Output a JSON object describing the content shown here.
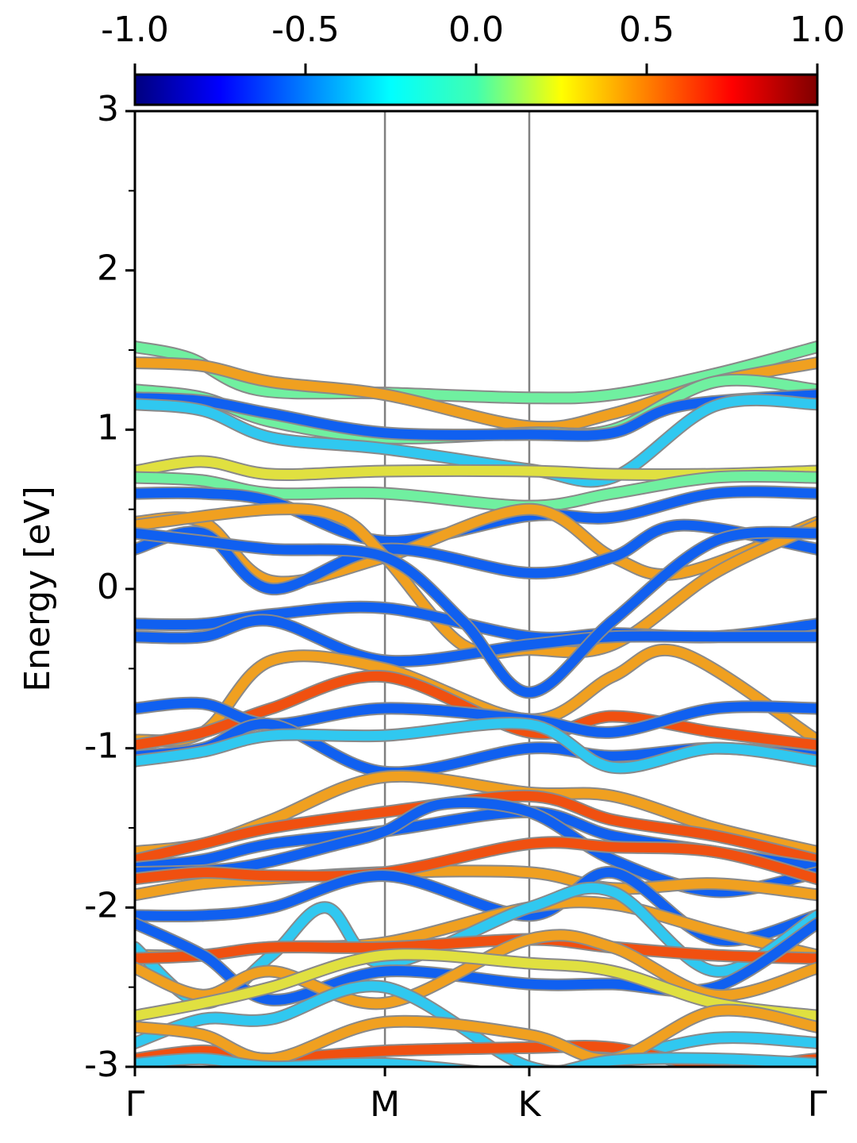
{
  "chart_data": {
    "type": "line",
    "ylabel": "Energy [eV]",
    "ylim": [
      -3,
      3
    ],
    "yticks": [
      "3",
      "2",
      "1",
      "0",
      "-1",
      "-2",
      "-3"
    ],
    "ytick_values": [
      3,
      2,
      1,
      0,
      -1,
      -2,
      -3
    ],
    "xticks": [
      "Γ",
      "M",
      "K",
      "Γ"
    ],
    "xtick_positions": [
      0,
      0.3664,
      0.5779,
      1
    ],
    "colorbar": {
      "colormap": "jet",
      "range": [
        -1.0,
        1.0
      ],
      "tick_labels": [
        "-1.0",
        "-0.5",
        "0.0",
        "0.5",
        "1.0"
      ],
      "tick_values": [
        -1.0,
        -0.5,
        0.0,
        0.5,
        1.0
      ]
    },
    "colors": {
      "blue": "#1060f0",
      "cyan": "#30c8f0",
      "green": "#70f0a0",
      "yellow": "#e0e040",
      "orange": "#f0a020",
      "red": "#f05010"
    },
    "series": [
      {
        "color": "green",
        "x": [
          0,
          0.08,
          0.18,
          0.3664,
          0.5779,
          0.7,
          0.85,
          1
        ],
        "y": [
          1.52,
          1.45,
          1.25,
          1.23,
          1.2,
          1.22,
          1.35,
          1.52
        ]
      },
      {
        "color": "orange",
        "x": [
          0,
          0.1,
          0.2,
          0.3664,
          0.5779,
          0.7,
          0.85,
          1
        ],
        "y": [
          1.42,
          1.4,
          1.3,
          1.22,
          1.02,
          1.1,
          1.3,
          1.42
        ]
      },
      {
        "color": "green",
        "x": [
          0,
          0.1,
          0.2,
          0.3664,
          0.5779,
          0.7,
          0.85,
          1
        ],
        "y": [
          1.25,
          1.2,
          1.05,
          0.95,
          0.98,
          1.0,
          1.3,
          1.25
        ]
      },
      {
        "color": "blue",
        "x": [
          0,
          0.1,
          0.2,
          0.3664,
          0.5779,
          0.7,
          0.8,
          1
        ],
        "y": [
          1.2,
          1.18,
          1.1,
          0.98,
          0.97,
          0.98,
          1.15,
          1.22
        ]
      },
      {
        "color": "cyan",
        "x": [
          0,
          0.1,
          0.2,
          0.3664,
          0.5779,
          0.7,
          0.85,
          1
        ],
        "y": [
          1.16,
          1.12,
          0.95,
          0.88,
          0.75,
          0.7,
          1.15,
          1.16
        ]
      },
      {
        "color": "yellow",
        "x": [
          0,
          0.1,
          0.2,
          0.3664,
          0.5779,
          0.7,
          0.85,
          1
        ],
        "y": [
          0.74,
          0.8,
          0.72,
          0.74,
          0.74,
          0.72,
          0.72,
          0.74
        ]
      },
      {
        "color": "green",
        "x": [
          0,
          0.1,
          0.2,
          0.3664,
          0.5779,
          0.7,
          0.85,
          1
        ],
        "y": [
          0.7,
          0.68,
          0.6,
          0.6,
          0.52,
          0.6,
          0.7,
          0.7
        ]
      },
      {
        "color": "blue",
        "x": [
          0,
          0.1,
          0.2,
          0.3664,
          0.5779,
          0.7,
          0.85,
          1
        ],
        "y": [
          0.6,
          0.6,
          0.55,
          0.3,
          0.46,
          0.45,
          0.6,
          0.6
        ]
      },
      {
        "color": "orange",
        "x": [
          0,
          0.1,
          0.2,
          0.3664,
          0.5779,
          0.7,
          0.8,
          1
        ],
        "y": [
          0.42,
          0.42,
          0.05,
          0.2,
          0.5,
          0.2,
          0.1,
          0.42
        ]
      },
      {
        "color": "blue",
        "x": [
          0,
          0.1,
          0.2,
          0.3664,
          0.5779,
          0.7,
          0.8,
          1
        ],
        "y": [
          0.25,
          0.35,
          0.0,
          0.25,
          0.1,
          0.2,
          0.4,
          0.25
        ]
      },
      {
        "color": "orange",
        "x": [
          0,
          0.2,
          0.3,
          0.3664,
          0.48,
          0.5779,
          0.7,
          0.85,
          1
        ],
        "y": [
          0.4,
          0.5,
          0.45,
          0.2,
          -0.35,
          -0.38,
          -0.35,
          0.1,
          0.4
        ]
      },
      {
        "color": "blue",
        "x": [
          0,
          0.1,
          0.2,
          0.3664,
          0.5779,
          0.7,
          0.85,
          1
        ],
        "y": [
          -0.22,
          -0.22,
          -0.16,
          -0.12,
          -0.3,
          -0.28,
          -0.3,
          -0.22
        ]
      },
      {
        "color": "blue",
        "x": [
          0,
          0.1,
          0.2,
          0.3664,
          0.5779,
          0.7,
          0.85,
          1
        ],
        "y": [
          -0.3,
          -0.3,
          -0.2,
          -0.45,
          -0.35,
          -0.3,
          -0.3,
          -0.3
        ]
      },
      {
        "color": "blue",
        "x": [
          0,
          0.1,
          0.2,
          0.3664,
          0.48,
          0.5779,
          0.7,
          0.85,
          1
        ],
        "y": [
          0.35,
          0.3,
          0.25,
          0.2,
          -0.2,
          -0.65,
          -0.2,
          0.3,
          0.35
        ]
      },
      {
        "color": "orange",
        "x": [
          0,
          0.1,
          0.2,
          0.3664,
          0.5779,
          0.7,
          0.8,
          1
        ],
        "y": [
          -0.95,
          -0.9,
          -0.45,
          -0.5,
          -0.82,
          -0.55,
          -0.4,
          -0.95
        ]
      },
      {
        "color": "red",
        "x": [
          0,
          0.1,
          0.2,
          0.3664,
          0.5779,
          0.7,
          0.85,
          1
        ],
        "y": [
          -0.98,
          -0.9,
          -0.75,
          -0.55,
          -0.9,
          -0.8,
          -0.9,
          -0.98
        ]
      },
      {
        "color": "blue",
        "x": [
          0,
          0.1,
          0.2,
          0.3664,
          0.5779,
          0.7,
          0.85,
          1
        ],
        "y": [
          -0.75,
          -0.72,
          -0.85,
          -0.75,
          -0.82,
          -0.9,
          -0.75,
          -0.75
        ]
      },
      {
        "color": "blue",
        "x": [
          0,
          0.1,
          0.2,
          0.3664,
          0.5779,
          0.7,
          0.85,
          1
        ],
        "y": [
          -1.05,
          -1.0,
          -0.85,
          -1.15,
          -1.0,
          -1.05,
          -1.0,
          -1.05
        ]
      },
      {
        "color": "cyan",
        "x": [
          0,
          0.1,
          0.2,
          0.3664,
          0.5779,
          0.7,
          0.85,
          1
        ],
        "y": [
          -1.08,
          -1.02,
          -0.92,
          -0.92,
          -0.85,
          -1.12,
          -1.0,
          -1.08
        ]
      },
      {
        "color": "orange",
        "x": [
          0,
          0.1,
          0.2,
          0.3664,
          0.5779,
          0.7,
          0.85,
          1
        ],
        "y": [
          -1.65,
          -1.6,
          -1.45,
          -1.18,
          -1.28,
          -1.3,
          -1.5,
          -1.65
        ]
      },
      {
        "color": "red",
        "x": [
          0,
          0.1,
          0.2,
          0.3664,
          0.5779,
          0.7,
          0.85,
          1
        ],
        "y": [
          -1.7,
          -1.6,
          -1.5,
          -1.4,
          -1.3,
          -1.45,
          -1.55,
          -1.7
        ]
      },
      {
        "color": "blue",
        "x": [
          0,
          0.1,
          0.2,
          0.3664,
          0.5779,
          0.7,
          0.85,
          1
        ],
        "y": [
          -1.75,
          -1.7,
          -1.6,
          -1.52,
          -1.4,
          -1.55,
          -1.65,
          -1.75
        ]
      },
      {
        "color": "blue",
        "x": [
          0,
          0.15,
          0.3,
          0.3664,
          0.45,
          0.5779,
          0.7,
          0.85,
          1
        ],
        "y": [
          -1.78,
          -1.75,
          -1.6,
          -1.52,
          -1.35,
          -1.4,
          -1.7,
          -1.9,
          -1.78
        ]
      },
      {
        "color": "orange",
        "x": [
          0,
          0.1,
          0.2,
          0.3664,
          0.5779,
          0.7,
          0.85,
          1
        ],
        "y": [
          -1.92,
          -1.85,
          -1.82,
          -1.78,
          -1.78,
          -1.88,
          -1.85,
          -1.92
        ]
      },
      {
        "color": "red",
        "x": [
          0,
          0.1,
          0.2,
          0.3664,
          0.5779,
          0.7,
          0.85,
          1
        ],
        "y": [
          -1.82,
          -1.78,
          -1.8,
          -1.78,
          -1.6,
          -1.62,
          -1.65,
          -1.82
        ]
      },
      {
        "color": "blue",
        "x": [
          0,
          0.1,
          0.2,
          0.3664,
          0.5779,
          0.7,
          0.85,
          1
        ],
        "y": [
          -2.05,
          -2.05,
          -2.0,
          -1.8,
          -2.05,
          -1.78,
          -2.2,
          -2.05
        ]
      },
      {
        "color": "orange",
        "x": [
          0,
          0.1,
          0.2,
          0.3664,
          0.5779,
          0.7,
          0.85,
          1
        ],
        "y": [
          -2.3,
          -2.3,
          -2.25,
          -2.22,
          -2.0,
          -1.98,
          -2.15,
          -2.3
        ]
      },
      {
        "color": "cyan",
        "x": [
          0,
          0.1,
          0.2,
          0.28,
          0.3664,
          0.5779,
          0.7,
          0.85,
          1
        ],
        "y": [
          -2.25,
          -2.6,
          -2.3,
          -2.0,
          -2.35,
          -2.0,
          -1.9,
          -2.4,
          -2.05
        ]
      },
      {
        "color": "red",
        "x": [
          0,
          0.1,
          0.2,
          0.3664,
          0.5779,
          0.7,
          0.85,
          1
        ],
        "y": [
          -2.32,
          -2.3,
          -2.25,
          -2.25,
          -2.2,
          -2.25,
          -2.3,
          -2.32
        ]
      },
      {
        "color": "blue",
        "x": [
          0,
          0.1,
          0.2,
          0.3664,
          0.5779,
          0.7,
          0.85,
          1
        ],
        "y": [
          -2.1,
          -2.3,
          -2.58,
          -2.4,
          -2.48,
          -2.48,
          -2.5,
          -2.1
        ]
      },
      {
        "color": "orange",
        "x": [
          0,
          0.1,
          0.2,
          0.3664,
          0.5779,
          0.7,
          0.85,
          1
        ],
        "y": [
          -2.38,
          -2.55,
          -2.4,
          -2.6,
          -2.2,
          -2.25,
          -2.55,
          -2.38
        ]
      },
      {
        "color": "yellow",
        "x": [
          0,
          0.1,
          0.2,
          0.3664,
          0.5779,
          0.7,
          0.85,
          1
        ],
        "y": [
          -2.68,
          -2.6,
          -2.5,
          -2.3,
          -2.35,
          -2.4,
          -2.6,
          -2.68
        ]
      },
      {
        "color": "cyan",
        "x": [
          0,
          0.1,
          0.2,
          0.3664,
          0.5779,
          0.7,
          0.85,
          1
        ],
        "y": [
          -2.85,
          -2.7,
          -2.7,
          -2.5,
          -3.0,
          -2.95,
          -2.82,
          -2.85
        ]
      },
      {
        "color": "red",
        "x": [
          0,
          0.1,
          0.2,
          0.3664,
          0.5779,
          0.7,
          0.85,
          1
        ],
        "y": [
          -2.95,
          -2.9,
          -2.95,
          -2.9,
          -2.88,
          -2.88,
          -3.0,
          -2.95
        ]
      },
      {
        "color": "orange",
        "x": [
          0,
          0.1,
          0.2,
          0.3664,
          0.5779,
          0.7,
          0.85,
          1
        ],
        "y": [
          -2.75,
          -2.8,
          -2.95,
          -2.72,
          -2.8,
          -2.95,
          -2.65,
          -2.75
        ]
      },
      {
        "color": "cyan",
        "x": [
          0,
          0.1,
          0.2,
          0.3664,
          0.5779,
          0.7,
          0.85,
          1
        ],
        "y": [
          -2.98,
          -2.95,
          -3.0,
          -2.98,
          -3.05,
          -2.96,
          -2.95,
          -2.98
        ]
      }
    ]
  }
}
